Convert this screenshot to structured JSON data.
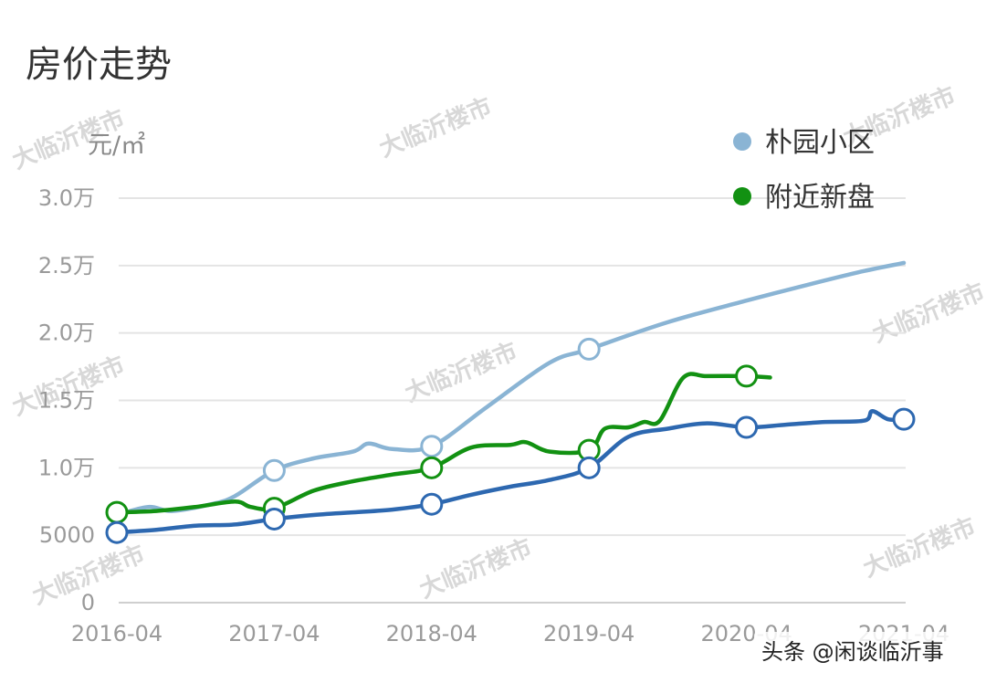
{
  "chart_data": {
    "type": "line",
    "title": "房价走势",
    "ylabel": "元/㎡",
    "xlabel": "",
    "ylim": [
      0,
      30000
    ],
    "y_ticks": [
      {
        "value": 0,
        "label": "0"
      },
      {
        "value": 5000,
        "label": "5000"
      },
      {
        "value": 10000,
        "label": "1.0万"
      },
      {
        "value": 15000,
        "label": "1.5万"
      },
      {
        "value": 20000,
        "label": "2.0万"
      },
      {
        "value": 25000,
        "label": "2.5万"
      },
      {
        "value": 30000,
        "label": "3.0万"
      }
    ],
    "x_ticks": [
      "2016-04",
      "2017-04",
      "2018-04",
      "2019-04",
      "2020-04",
      "2021-04"
    ],
    "legend_position": "top-right",
    "grid": true,
    "series": [
      {
        "name": "朴园小区",
        "color": "#8ab4d4",
        "points": [
          [
            2016.25,
            6500
          ],
          [
            2016.45,
            7100
          ],
          [
            2016.6,
            6800
          ],
          [
            2016.85,
            7300
          ],
          [
            2017.0,
            7900
          ],
          [
            2017.25,
            9800
          ],
          [
            2017.5,
            10700
          ],
          [
            2017.75,
            11200
          ],
          [
            2017.85,
            11800
          ],
          [
            2018.0,
            11400
          ],
          [
            2018.25,
            11600
          ],
          [
            2018.6,
            14500
          ],
          [
            2019.0,
            17800
          ],
          [
            2019.25,
            18800
          ],
          [
            2019.75,
            20800
          ],
          [
            2020.25,
            22400
          ],
          [
            2020.75,
            23900
          ],
          [
            2021.0,
            24600
          ],
          [
            2021.25,
            25200
          ]
        ],
        "markers": [
          [
            2017.25,
            9800
          ],
          [
            2018.25,
            11600
          ],
          [
            2019.25,
            18800
          ]
        ]
      },
      {
        "name": "附近新盘",
        "color": "#129112",
        "points": [
          [
            2016.25,
            6700
          ],
          [
            2016.5,
            6800
          ],
          [
            2016.75,
            7100
          ],
          [
            2017.0,
            7500
          ],
          [
            2017.1,
            7100
          ],
          [
            2017.25,
            7000
          ],
          [
            2017.5,
            8300
          ],
          [
            2017.75,
            9000
          ],
          [
            2018.0,
            9500
          ],
          [
            2018.25,
            10000
          ],
          [
            2018.5,
            11500
          ],
          [
            2018.75,
            11700
          ],
          [
            2018.85,
            11900
          ],
          [
            2019.0,
            11200
          ],
          [
            2019.25,
            11300
          ],
          [
            2019.35,
            12900
          ],
          [
            2019.5,
            13000
          ],
          [
            2019.6,
            13400
          ],
          [
            2019.7,
            13500
          ],
          [
            2019.85,
            16700
          ],
          [
            2020.0,
            16800
          ],
          [
            2020.25,
            16800
          ],
          [
            2020.4,
            16700
          ]
        ],
        "markers": [
          [
            2016.25,
            6700
          ],
          [
            2017.25,
            7000
          ],
          [
            2018.25,
            10000
          ],
          [
            2019.25,
            11300
          ],
          [
            2020.25,
            16800
          ]
        ]
      },
      {
        "name": "",
        "color": "#2d68b0",
        "points": [
          [
            2016.25,
            5200
          ],
          [
            2016.5,
            5400
          ],
          [
            2016.75,
            5700
          ],
          [
            2017.0,
            5800
          ],
          [
            2017.25,
            6200
          ],
          [
            2017.5,
            6500
          ],
          [
            2017.75,
            6700
          ],
          [
            2018.0,
            6900
          ],
          [
            2018.25,
            7300
          ],
          [
            2018.5,
            8000
          ],
          [
            2018.75,
            8600
          ],
          [
            2019.0,
            9100
          ],
          [
            2019.25,
            10000
          ],
          [
            2019.5,
            12300
          ],
          [
            2019.75,
            12900
          ],
          [
            2020.0,
            13300
          ],
          [
            2020.25,
            13000
          ],
          [
            2020.5,
            13200
          ],
          [
            2020.75,
            13400
          ],
          [
            2021.0,
            13500
          ],
          [
            2021.05,
            14200
          ],
          [
            2021.15,
            13600
          ],
          [
            2021.25,
            13600
          ]
        ],
        "markers": [
          [
            2016.25,
            5200
          ],
          [
            2017.25,
            6200
          ],
          [
            2018.25,
            7300
          ],
          [
            2019.25,
            10000
          ],
          [
            2020.25,
            13000
          ],
          [
            2021.25,
            13600
          ]
        ]
      }
    ]
  },
  "watermark_text": "大临沂楼市",
  "credit": "头条 @闲谈临沂事"
}
